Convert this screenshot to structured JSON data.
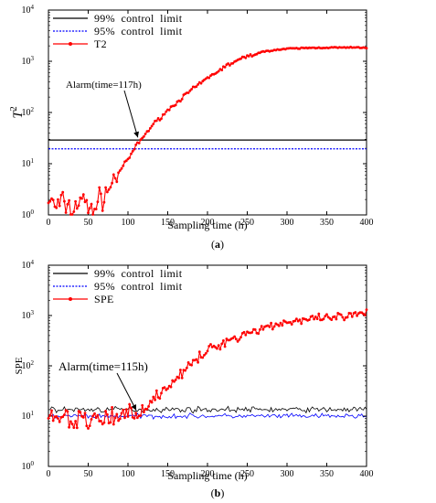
{
  "chart_data": [
    {
      "type": "line",
      "panel_label": "(a)",
      "panel_letter": "a",
      "xlabel": "Sampling time (h)",
      "ylabel": "T",
      "ylabel_sup": "2",
      "xlim": [
        0,
        400
      ],
      "ylim": [
        1,
        10000
      ],
      "yscale": "log",
      "xticks": [
        "0",
        "50",
        "100",
        "150",
        "200",
        "250",
        "300",
        "350",
        "400"
      ],
      "yticks": [
        {
          "base": "10",
          "exp": "0"
        },
        {
          "base": "10",
          "exp": "1"
        },
        {
          "base": "10",
          "exp": "2"
        },
        {
          "base": "10",
          "exp": "3"
        },
        {
          "base": "10",
          "exp": "4"
        }
      ],
      "legend_position": "top-left",
      "legend": [
        {
          "label": "99%  control  limit",
          "color": "#000000",
          "style": "solid"
        },
        {
          "label": "95%  control  limit",
          "color": "#0000ff",
          "style": "dotted"
        },
        {
          "label": "T2",
          "color": "#ff0000",
          "style": "solid-marker"
        }
      ],
      "annotation": {
        "text": "Alarm(time=117h)",
        "x": 117,
        "y": 30
      },
      "limits": {
        "limit99": 29,
        "limit95": 19.5
      },
      "series_T2": {
        "x": [
          0,
          10,
          20,
          30,
          40,
          50,
          60,
          70,
          80,
          90,
          100,
          110,
          117,
          130,
          150,
          175,
          200,
          225,
          250,
          275,
          300,
          325,
          350,
          375,
          400
        ],
        "y": [
          2,
          1.4,
          1.8,
          1.1,
          2.2,
          1.3,
          1.5,
          2.5,
          4,
          7.5,
          12,
          22,
          30,
          55,
          110,
          240,
          470,
          840,
          1250,
          1600,
          1750,
          1820,
          1850,
          1850,
          1850
        ]
      }
    },
    {
      "type": "line",
      "panel_label": "(b)",
      "panel_letter": "b",
      "xlabel": "Sampling time (h)",
      "ylabel": "SPE",
      "xlim": [
        0,
        400
      ],
      "ylim": [
        1,
        10000
      ],
      "yscale": "log",
      "xticks": [
        "0",
        "50",
        "100",
        "150",
        "200",
        "250",
        "300",
        "350",
        "400"
      ],
      "yticks": [
        {
          "base": "10",
          "exp": "0"
        },
        {
          "base": "10",
          "exp": "1"
        },
        {
          "base": "10",
          "exp": "2"
        },
        {
          "base": "10",
          "exp": "3"
        },
        {
          "base": "10",
          "exp": "4"
        }
      ],
      "legend_position": "top-left",
      "legend": [
        {
          "label": "99%  control  limit",
          "color": "#000000",
          "style": "solid"
        },
        {
          "label": "95%  control  limit",
          "color": "#0000ff",
          "style": "dotted"
        },
        {
          "label": "SPE",
          "color": "#ff0000",
          "style": "solid-marker"
        }
      ],
      "annotation": {
        "text": "Alarm(time=115h)",
        "x": 115,
        "y": 12
      },
      "limits": {
        "limit99": 13.5,
        "limit95": 10
      },
      "series_SPE": {
        "x": [
          0,
          10,
          20,
          30,
          40,
          50,
          60,
          70,
          80,
          90,
          100,
          115,
          130,
          150,
          175,
          200,
          225,
          250,
          275,
          300,
          325,
          350,
          375,
          400
        ],
        "y": [
          14,
          8,
          10,
          6,
          9,
          7,
          11,
          8,
          10,
          9,
          11,
          12,
          20,
          40,
          90,
          200,
          320,
          450,
          600,
          750,
          820,
          880,
          950,
          1100
        ]
      }
    }
  ]
}
